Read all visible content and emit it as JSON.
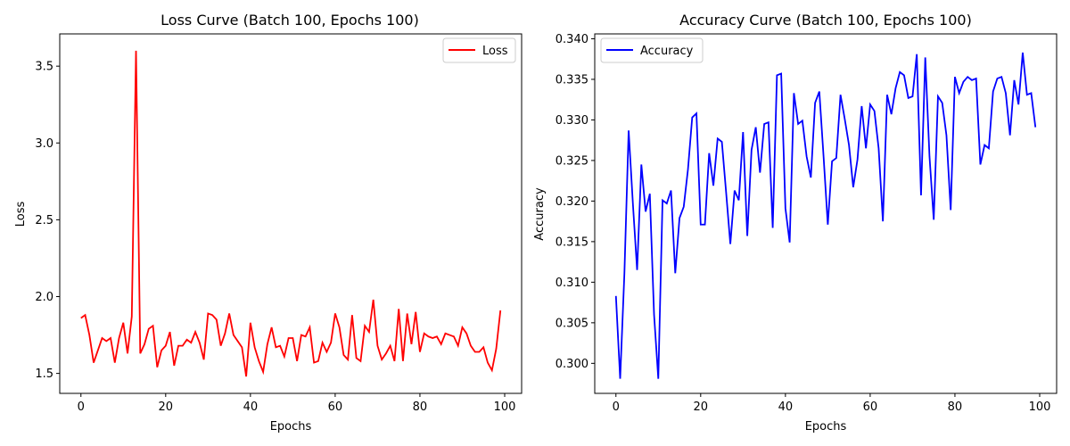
{
  "chart_data": [
    {
      "type": "line",
      "title": "Loss Curve (Batch 100, Epochs 100)",
      "xlabel": "Epochs",
      "ylabel": "Loss",
      "xlim": [
        -5,
        104
      ],
      "ylim": [
        1.37,
        3.71
      ],
      "xticks": [
        0,
        20,
        40,
        60,
        80,
        100
      ],
      "yticks": [
        1.5,
        2.0,
        2.5,
        3.0,
        3.5
      ],
      "ytick_labels": [
        "1.5",
        "2.0",
        "2.5",
        "3.0",
        "3.5"
      ],
      "legend_position": "top-right",
      "series": [
        {
          "name": "Loss",
          "color": "#ff0000",
          "x": [
            0,
            1,
            2,
            3,
            4,
            5,
            6,
            7,
            8,
            9,
            10,
            11,
            12,
            13,
            14,
            15,
            16,
            17,
            18,
            19,
            20,
            21,
            22,
            23,
            24,
            25,
            26,
            27,
            28,
            29,
            30,
            31,
            32,
            33,
            34,
            35,
            36,
            37,
            38,
            39,
            40,
            41,
            42,
            43,
            44,
            45,
            46,
            47,
            48,
            49,
            50,
            51,
            52,
            53,
            54,
            55,
            56,
            57,
            58,
            59,
            60,
            61,
            62,
            63,
            64,
            65,
            66,
            67,
            68,
            69,
            70,
            71,
            72,
            73,
            74,
            75,
            76,
            77,
            78,
            79,
            80,
            81,
            82,
            83,
            84,
            85,
            86,
            87,
            88,
            89,
            90,
            91,
            92,
            93,
            94,
            95,
            96,
            97,
            98,
            99
          ],
          "y": [
            1.86,
            1.88,
            1.75,
            1.57,
            1.65,
            1.73,
            1.71,
            1.73,
            1.57,
            1.73,
            1.83,
            1.63,
            1.87,
            3.6,
            1.63,
            1.69,
            1.79,
            1.81,
            1.54,
            1.65,
            1.68,
            1.77,
            1.55,
            1.68,
            1.68,
            1.72,
            1.7,
            1.77,
            1.7,
            1.59,
            1.89,
            1.88,
            1.85,
            1.68,
            1.76,
            1.89,
            1.75,
            1.71,
            1.67,
            1.48,
            1.83,
            1.67,
            1.58,
            1.51,
            1.69,
            1.8,
            1.67,
            1.68,
            1.61,
            1.73,
            1.73,
            1.58,
            1.75,
            1.74,
            1.8,
            1.57,
            1.58,
            1.7,
            1.64,
            1.7,
            1.89,
            1.8,
            1.62,
            1.59,
            1.88,
            1.6,
            1.58,
            1.81,
            1.77,
            1.98,
            1.68,
            1.59,
            1.63,
            1.68,
            1.58,
            1.92,
            1.58,
            1.89,
            1.69,
            1.9,
            1.64,
            1.76,
            1.74,
            1.73,
            1.74,
            1.69,
            1.76,
            1.75,
            1.74,
            1.68,
            1.8,
            1.76,
            1.68,
            1.64,
            1.64,
            1.67,
            1.57,
            1.52,
            1.66,
            1.91
          ]
        }
      ]
    },
    {
      "type": "line",
      "title": "Accuracy Curve (Batch 100, Epochs 100)",
      "xlabel": "Epochs",
      "ylabel": "Accuracy",
      "xlim": [
        -5,
        104
      ],
      "ylim": [
        0.2963,
        0.3406
      ],
      "xticks": [
        0,
        20,
        40,
        60,
        80,
        100
      ],
      "yticks": [
        0.3,
        0.305,
        0.31,
        0.315,
        0.32,
        0.325,
        0.33,
        0.335,
        0.34
      ],
      "ytick_labels": [
        "0.300",
        "0.305",
        "0.310",
        "0.315",
        "0.320",
        "0.325",
        "0.330",
        "0.335",
        "0.340"
      ],
      "legend_position": "top-left",
      "series": [
        {
          "name": "Accuracy",
          "color": "#0000ff",
          "x": [
            0,
            1,
            2,
            3,
            4,
            5,
            6,
            7,
            8,
            9,
            10,
            11,
            12,
            13,
            14,
            15,
            16,
            17,
            18,
            19,
            20,
            21,
            22,
            23,
            24,
            25,
            26,
            27,
            28,
            29,
            30,
            31,
            32,
            33,
            34,
            35,
            36,
            37,
            38,
            39,
            40,
            41,
            42,
            43,
            44,
            45,
            46,
            47,
            48,
            49,
            50,
            51,
            52,
            53,
            54,
            55,
            56,
            57,
            58,
            59,
            60,
            61,
            62,
            63,
            64,
            65,
            66,
            67,
            68,
            69,
            70,
            71,
            72,
            73,
            74,
            75,
            76,
            77,
            78,
            79,
            80,
            81,
            82,
            83,
            84,
            85,
            86,
            87,
            88,
            89,
            90,
            91,
            92,
            93,
            94,
            95,
            96,
            97,
            98,
            99
          ],
          "y": [
            0.3083,
            0.2981,
            0.3111,
            0.3287,
            0.3197,
            0.3115,
            0.3245,
            0.3187,
            0.3209,
            0.306,
            0.2981,
            0.3201,
            0.3197,
            0.3213,
            0.3111,
            0.3179,
            0.3193,
            0.3239,
            0.3303,
            0.3308,
            0.3171,
            0.3171,
            0.3259,
            0.3219,
            0.3277,
            0.3273,
            0.3211,
            0.3147,
            0.3213,
            0.3201,
            0.3285,
            0.3157,
            0.3263,
            0.3291,
            0.3235,
            0.3295,
            0.3297,
            0.3167,
            0.3355,
            0.3357,
            0.3191,
            0.3149,
            0.3333,
            0.3295,
            0.3299,
            0.3255,
            0.3229,
            0.3321,
            0.3335,
            0.3255,
            0.3171,
            0.3249,
            0.3253,
            0.3331,
            0.3301,
            0.3269,
            0.3217,
            0.3251,
            0.3317,
            0.3265,
            0.3319,
            0.3311,
            0.3265,
            0.3175,
            0.3331,
            0.3307,
            0.3339,
            0.3359,
            0.3355,
            0.3327,
            0.3329,
            0.3381,
            0.3207,
            0.3377,
            0.3255,
            0.3177,
            0.3329,
            0.3321,
            0.3281,
            0.3189,
            0.3353,
            0.3333,
            0.3347,
            0.3353,
            0.3349,
            0.3351,
            0.3245,
            0.3269,
            0.3265,
            0.3335,
            0.3351,
            0.3353,
            0.3333,
            0.3281,
            0.3349,
            0.3319,
            0.3383,
            0.3331,
            0.3333,
            0.3291
          ]
        }
      ]
    }
  ]
}
